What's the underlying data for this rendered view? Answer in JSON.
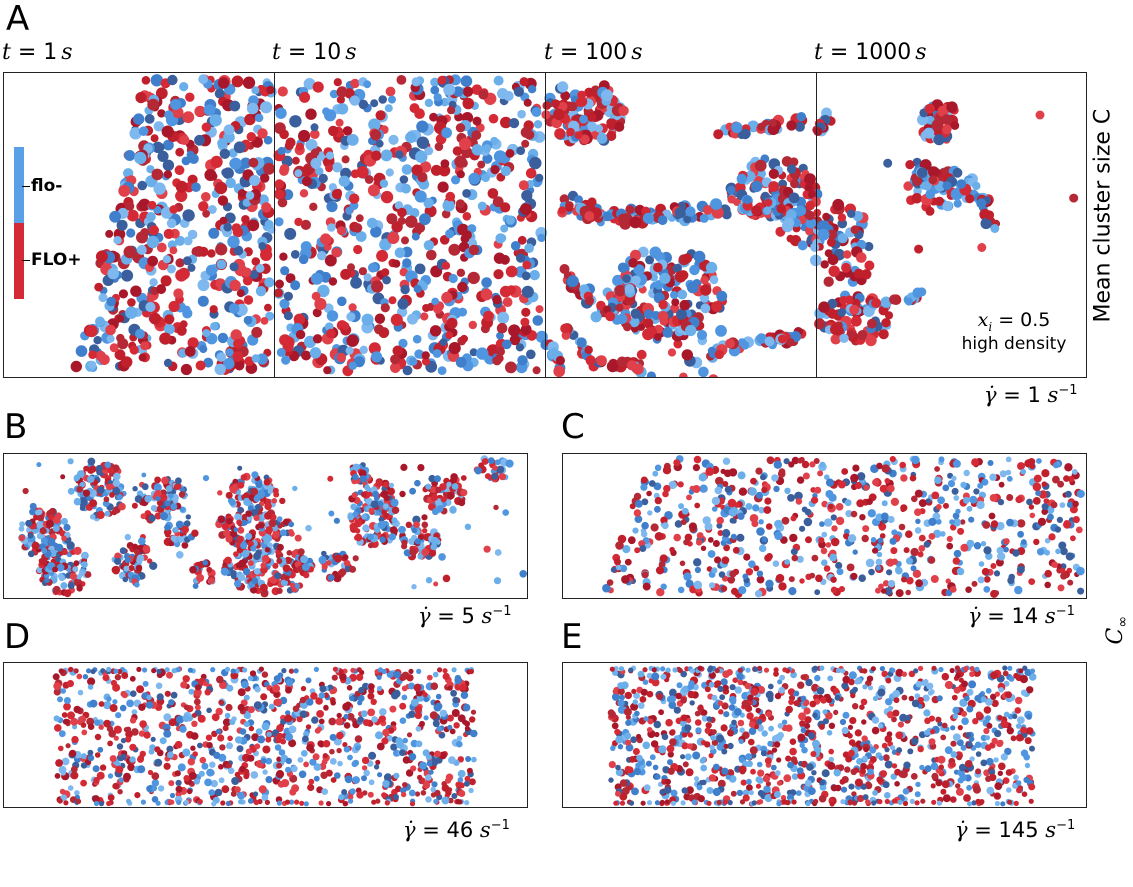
{
  "panel_letters": {
    "a": "A",
    "b": "B",
    "c": "C",
    "d": "D",
    "e": "E"
  },
  "time_labels": [
    {
      "var": "t",
      "eq": " = ",
      "num": "1",
      "unit": "s"
    },
    {
      "var": "t",
      "eq": " = ",
      "num": "10",
      "unit": "s"
    },
    {
      "var": "t",
      "eq": " = ",
      "num": "100",
      "unit": "s"
    },
    {
      "var": "t",
      "eq": " = ",
      "num": "1000",
      "unit": "s"
    }
  ],
  "legend": {
    "flo_minus": "flo-",
    "flo_plus": "FLO+",
    "colors": {
      "flo_minus": "#5aa0e6",
      "flo_plus": "#d42a36"
    }
  },
  "annotation": {
    "var": "x",
    "sub": "i",
    "eq": " = 0.5",
    "line2": "high density"
  },
  "shear_rates": {
    "a": {
      "sym": "γ̇",
      "eq": " = 1 ",
      "unit": "s",
      "exp": "−1"
    },
    "b": {
      "sym": "γ̇",
      "eq": " = 5 ",
      "unit": "s",
      "exp": "−1"
    },
    "c": {
      "sym": "γ̇",
      "eq": " = 14 ",
      "unit": "s",
      "exp": "−1"
    },
    "d": {
      "sym": "γ̇",
      "eq": " = 46 ",
      "unit": "s",
      "exp": "−1"
    },
    "e": {
      "sym": "γ̇",
      "eq": " = 145 ",
      "unit": "s",
      "exp": "−1"
    }
  },
  "side_labels": {
    "mean_cluster": "Mean cluster size C",
    "c_inf_base": "C",
    "c_inf_sub": "∞"
  },
  "palette": {
    "blue": [
      "#4f95e0",
      "#6aaeea",
      "#3f7fcc",
      "#7fb8ee",
      "#3a5f9c"
    ],
    "red": [
      "#d42a36",
      "#c0202c",
      "#e0404a",
      "#a8182a",
      "#b52835"
    ]
  }
}
